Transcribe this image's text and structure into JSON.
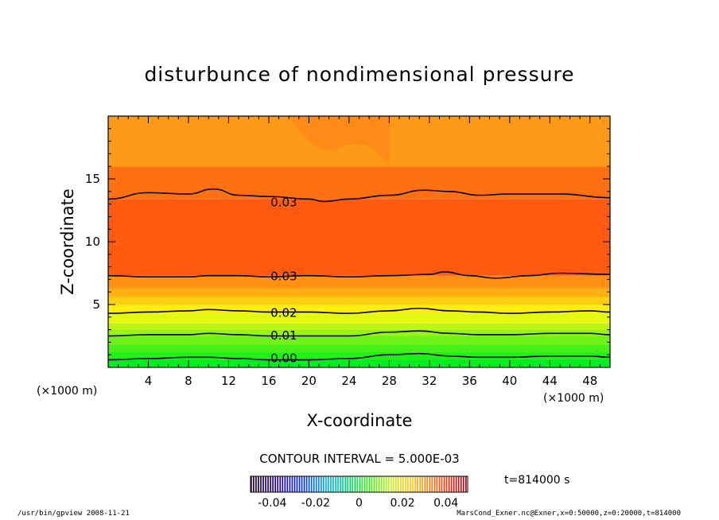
{
  "chart_data": {
    "type": "contour",
    "title": "disturbunce of nondimensional pressure",
    "xlabel": "X-coordinate",
    "ylabel": "Z-coordinate",
    "x_unit_left": "(×1000 m)",
    "x_unit_right": "(×1000 m)",
    "xlim": [
      0,
      50
    ],
    "ylim": [
      0,
      20
    ],
    "x_ticks": [
      "4",
      "8",
      "12",
      "16",
      "20",
      "24",
      "28",
      "32",
      "36",
      "40",
      "44",
      "48"
    ],
    "y_ticks": [
      "5",
      "10",
      "15"
    ],
    "contour_interval_text": "CONTOUR INTERVAL = 5.000E-03",
    "time_text": "t=814000 s",
    "contour_labels": [
      {
        "text": "0.03",
        "x": 17.5,
        "z": 13.2
      },
      {
        "text": "0.03",
        "x": 17.5,
        "z": 7.3
      },
      {
        "text": "0.02",
        "x": 17.5,
        "z": 4.4
      },
      {
        "text": "0.01",
        "x": 17.5,
        "z": 2.6
      },
      {
        "text": "0.00",
        "x": 17.5,
        "z": 0.8
      }
    ],
    "contour_lines": [
      {
        "value": 0.03,
        "points": [
          [
            0,
            13.4
          ],
          [
            4,
            13.9
          ],
          [
            8,
            13.8
          ],
          [
            10.5,
            14.2
          ],
          [
            13,
            13.7
          ],
          [
            16,
            13.6
          ],
          [
            20,
            13.4
          ],
          [
            21.5,
            13.2
          ],
          [
            24,
            13.4
          ],
          [
            28,
            13.7
          ],
          [
            31.5,
            14.1
          ],
          [
            34,
            14.0
          ],
          [
            37,
            13.7
          ],
          [
            40,
            13.8
          ],
          [
            45,
            13.8
          ],
          [
            50,
            13.5
          ]
        ]
      },
      {
        "value": 0.03,
        "points": [
          [
            0,
            7.3
          ],
          [
            4,
            7.2
          ],
          [
            8,
            7.2
          ],
          [
            10,
            7.3
          ],
          [
            13,
            7.3
          ],
          [
            16,
            7.2
          ],
          [
            20,
            7.3
          ],
          [
            24,
            7.2
          ],
          [
            28,
            7.3
          ],
          [
            32,
            7.4
          ],
          [
            33.5,
            7.6
          ],
          [
            36,
            7.3
          ],
          [
            38.5,
            7.1
          ],
          [
            42,
            7.3
          ],
          [
            45,
            7.5
          ],
          [
            50,
            7.4
          ]
        ]
      },
      {
        "value": 0.02,
        "points": [
          [
            0,
            4.3
          ],
          [
            4,
            4.4
          ],
          [
            8,
            4.5
          ],
          [
            10,
            4.6
          ],
          [
            13,
            4.5
          ],
          [
            16,
            4.4
          ],
          [
            20,
            4.4
          ],
          [
            24,
            4.3
          ],
          [
            28,
            4.5
          ],
          [
            31,
            4.7
          ],
          [
            34,
            4.5
          ],
          [
            37,
            4.4
          ],
          [
            40,
            4.3
          ],
          [
            44,
            4.4
          ],
          [
            48,
            4.5
          ],
          [
            50,
            4.4
          ]
        ]
      },
      {
        "value": 0.01,
        "points": [
          [
            0,
            2.5
          ],
          [
            4,
            2.6
          ],
          [
            8,
            2.6
          ],
          [
            10,
            2.7
          ],
          [
            13,
            2.6
          ],
          [
            16,
            2.5
          ],
          [
            20,
            2.5
          ],
          [
            24,
            2.5
          ],
          [
            28,
            2.8
          ],
          [
            31,
            2.9
          ],
          [
            34,
            2.7
          ],
          [
            37,
            2.6
          ],
          [
            40,
            2.6
          ],
          [
            44,
            2.7
          ],
          [
            48,
            2.7
          ],
          [
            50,
            2.6
          ]
        ]
      },
      {
        "value": 0.0,
        "points": [
          [
            0,
            0.6
          ],
          [
            4,
            0.7
          ],
          [
            8,
            0.8
          ],
          [
            10,
            0.8
          ],
          [
            13,
            0.7
          ],
          [
            16,
            0.6
          ],
          [
            20,
            0.6
          ],
          [
            24,
            0.7
          ],
          [
            28,
            1.0
          ],
          [
            31,
            1.1
          ],
          [
            34,
            0.9
          ],
          [
            37,
            0.8
          ],
          [
            40,
            0.8
          ],
          [
            44,
            0.9
          ],
          [
            48,
            0.9
          ],
          [
            50,
            0.8
          ]
        ]
      }
    ],
    "fill_bands": [
      {
        "from": 0,
        "to": 0.6,
        "color": "#00ee22"
      },
      {
        "from": 0.6,
        "to": 1.2,
        "color": "#1ef01a"
      },
      {
        "from": 1.2,
        "to": 1.8,
        "color": "#44f018"
      },
      {
        "from": 1.8,
        "to": 2.5,
        "color": "#6ef218"
      },
      {
        "from": 2.5,
        "to": 3.0,
        "color": "#96f416"
      },
      {
        "from": 3.0,
        "to": 3.5,
        "color": "#bcf614"
      },
      {
        "from": 3.5,
        "to": 4.3,
        "color": "#e4f810"
      },
      {
        "from": 4.3,
        "to": 5.0,
        "color": "#ffee10"
      },
      {
        "from": 5.0,
        "to": 5.6,
        "color": "#ffd010"
      },
      {
        "from": 5.6,
        "to": 6.3,
        "color": "#ffb010"
      },
      {
        "from": 6.3,
        "to": 7.3,
        "color": "#ff9012"
      },
      {
        "from": 7.3,
        "to": 13.4,
        "color": "#ff5a10"
      },
      {
        "from": 13.4,
        "to": 16.0,
        "color": "#ff7012"
      },
      {
        "from": 16.0,
        "to": 20.0,
        "color": "#ff9a18"
      }
    ],
    "colorbar": {
      "range": [
        -0.05,
        0.05
      ],
      "tick_labels": [
        "-0.04",
        "-0.02",
        "0",
        "0.02",
        "0.04"
      ],
      "tick_values": [
        -0.04,
        -0.02,
        0,
        0.02,
        0.04
      ]
    }
  },
  "footer": {
    "left": "/usr/bin/gpview   2008-11-21",
    "right": "MarsCond_Exner.nc@Exner,x=0:50000,z=0:20000,t=814000"
  }
}
